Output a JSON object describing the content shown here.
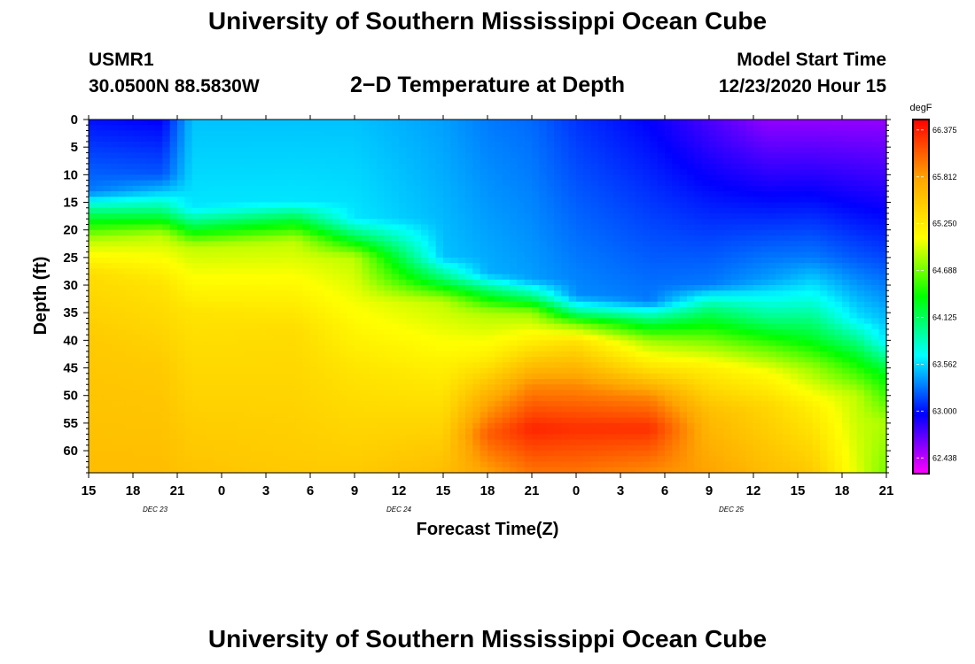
{
  "header": {
    "title": "University of Southern Mississippi Ocean Cube",
    "station": "USMR1",
    "coords": "30.0500N 88.5830W",
    "subtitle": "2−D Temperature at Depth",
    "start_label": "Model Start Time",
    "start_time": "12/23/2020 Hour 15"
  },
  "footer": {
    "title": "University of Southern Mississippi Ocean Cube"
  },
  "chart_data": {
    "type": "heatmap",
    "title": "2-D Temperature at Depth",
    "xlabel": "Forecast Time(Z)",
    "ylabel": "Depth (ft)",
    "x_unit": "forecast hours from 12/23/2020 15Z",
    "x_range": [
      0,
      54
    ],
    "y_range": [
      0,
      64
    ],
    "x_ticks": [
      {
        "hour": 0,
        "label": "15"
      },
      {
        "hour": 3,
        "label": "18"
      },
      {
        "hour": 6,
        "label": "21"
      },
      {
        "hour": 9,
        "label": "0"
      },
      {
        "hour": 12,
        "label": "3"
      },
      {
        "hour": 15,
        "label": "6"
      },
      {
        "hour": 18,
        "label": "9"
      },
      {
        "hour": 21,
        "label": "12"
      },
      {
        "hour": 24,
        "label": "15"
      },
      {
        "hour": 27,
        "label": "18"
      },
      {
        "hour": 30,
        "label": "21"
      },
      {
        "hour": 33,
        "label": "0"
      },
      {
        "hour": 36,
        "label": "3"
      },
      {
        "hour": 39,
        "label": "6"
      },
      {
        "hour": 42,
        "label": "9"
      },
      {
        "hour": 45,
        "label": "12"
      },
      {
        "hour": 48,
        "label": "15"
      },
      {
        "hour": 51,
        "label": "18"
      },
      {
        "hour": 54,
        "label": "21"
      }
    ],
    "date_labels": [
      {
        "hour": 4.5,
        "label": "DEC 23"
      },
      {
        "hour": 21,
        "label": "DEC 24"
      },
      {
        "hour": 43.5,
        "label": "DEC 25"
      }
    ],
    "y_ticks": [
      0,
      5,
      10,
      15,
      20,
      25,
      30,
      35,
      40,
      45,
      50,
      55,
      60
    ],
    "colorbar": {
      "unit": "degF",
      "min": 62.25,
      "max": 66.5,
      "ticks": [
        66.375,
        65.812,
        65.25,
        64.688,
        64.125,
        63.562,
        63.0,
        62.438
      ],
      "colors": [
        "#ff00ff",
        "#0000ff",
        "#00ffff",
        "#00ff00",
        "#ffff00",
        "#ffa500",
        "#ff0000"
      ]
    },
    "profiles": [
      {
        "hour": 0,
        "depths": [
          0,
          13,
          17,
          22,
          28,
          40,
          64
        ],
        "temps": [
          63.0,
          63.3,
          64.1,
          64.9,
          65.35,
          65.5,
          65.6
        ]
      },
      {
        "hour": 5,
        "depths": [
          0,
          10,
          13,
          17,
          21,
          30,
          45,
          64
        ],
        "temps": [
          62.95,
          63.2,
          63.5,
          64.1,
          64.9,
          65.3,
          65.5,
          65.6
        ]
      },
      {
        "hour": 7,
        "depths": [
          0,
          16,
          19,
          23,
          35,
          64
        ],
        "temps": [
          63.5,
          63.6,
          64.1,
          64.9,
          65.3,
          65.55
        ]
      },
      {
        "hour": 14,
        "depths": [
          0,
          15,
          18,
          22,
          38,
          64
        ],
        "temps": [
          63.5,
          63.6,
          64.2,
          64.9,
          65.35,
          65.5
        ]
      },
      {
        "hour": 18,
        "depths": [
          0,
          18,
          21,
          25,
          46,
          64
        ],
        "temps": [
          63.5,
          63.6,
          64.1,
          64.9,
          65.3,
          65.5
        ]
      },
      {
        "hour": 24,
        "depths": [
          0,
          25,
          29,
          33,
          45,
          64
        ],
        "temps": [
          63.4,
          63.5,
          64.1,
          64.9,
          65.2,
          65.6
        ]
      },
      {
        "hour": 27,
        "depths": [
          0,
          28,
          31,
          35,
          43,
          50,
          57,
          64
        ],
        "temps": [
          63.3,
          63.45,
          64.1,
          64.85,
          65.2,
          65.7,
          66.1,
          65.8
        ]
      },
      {
        "hour": 30,
        "depths": [
          0,
          29,
          32,
          35,
          40,
          48,
          56,
          64
        ],
        "temps": [
          63.25,
          63.4,
          64.0,
          64.8,
          65.2,
          65.9,
          66.35,
          66.0
        ]
      },
      {
        "hour": 33,
        "depths": [
          0,
          32,
          35,
          37,
          40,
          48,
          56,
          64
        ],
        "temps": [
          63.1,
          63.35,
          64.0,
          64.7,
          65.3,
          65.9,
          66.3,
          66.0
        ]
      },
      {
        "hour": 38,
        "depths": [
          0,
          33,
          36,
          40,
          45,
          50,
          56,
          64
        ],
        "temps": [
          62.95,
          63.3,
          64.0,
          64.8,
          65.3,
          65.9,
          66.3,
          65.9
        ]
      },
      {
        "hour": 42,
        "depths": [
          0,
          30,
          34,
          40,
          45,
          53,
          64
        ],
        "temps": [
          62.75,
          63.3,
          64.0,
          64.7,
          65.2,
          65.6,
          65.8
        ]
      },
      {
        "hour": 46,
        "depths": [
          0,
          29,
          36,
          42,
          46,
          52,
          64
        ],
        "temps": [
          62.55,
          63.4,
          64.0,
          64.7,
          65.1,
          65.4,
          65.6
        ]
      },
      {
        "hour": 49,
        "depths": [
          0,
          25,
          32,
          40,
          45,
          52,
          64
        ],
        "temps": [
          62.55,
          63.3,
          63.7,
          64.3,
          64.8,
          65.2,
          65.5
        ]
      },
      {
        "hour": 52,
        "depths": [
          0,
          25,
          36,
          43,
          50,
          64
        ],
        "temps": [
          62.55,
          63.2,
          63.6,
          64.3,
          64.9,
          65.0
        ]
      },
      {
        "hour": 54,
        "depths": [
          0,
          25,
          40,
          46,
          55,
          64
        ],
        "temps": [
          62.55,
          63.15,
          63.6,
          64.3,
          64.85,
          64.7
        ]
      }
    ]
  }
}
